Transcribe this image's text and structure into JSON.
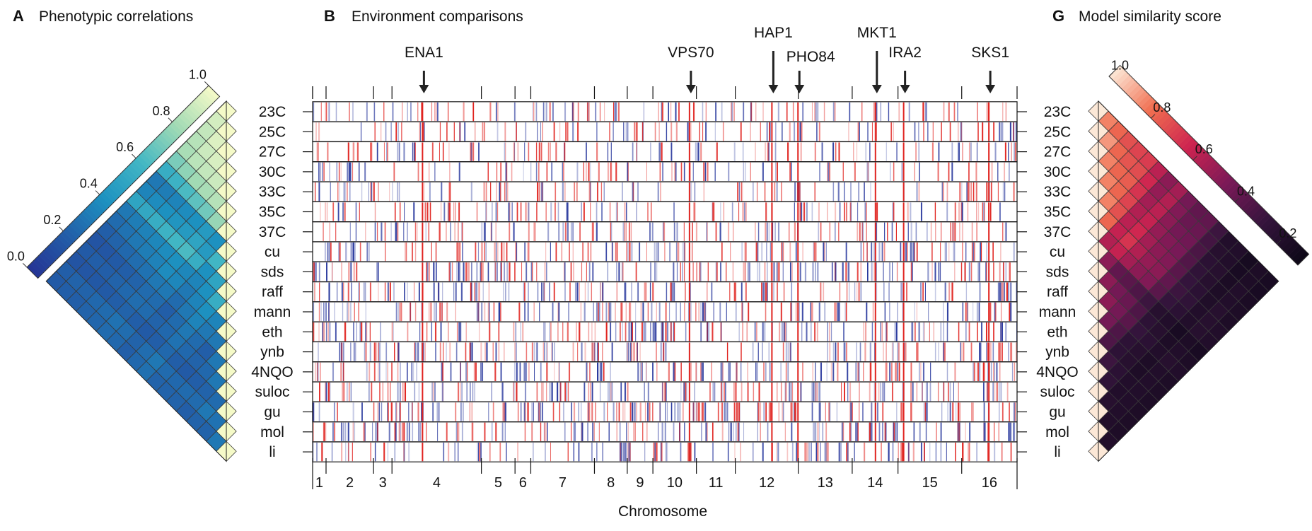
{
  "panel_a": {
    "letter": "A",
    "title": "Phenotypic correlations"
  },
  "panel_b": {
    "letter": "B",
    "title": "Environment comparisons",
    "xlabel": "Chromosome"
  },
  "panel_g": {
    "letter": "G",
    "title": "Model similarity score"
  },
  "environments": [
    "23C",
    "25C",
    "27C",
    "30C",
    "33C",
    "35C",
    "37C",
    "cu",
    "sds",
    "raff",
    "mann",
    "eth",
    "ynb",
    "4NQO",
    "suloc",
    "gu",
    "mol",
    "li"
  ],
  "chromosomes": [
    "1",
    "2",
    "3",
    "4",
    "5",
    "6",
    "7",
    "8",
    "9",
    "10",
    "11",
    "12",
    "13",
    "14",
    "15",
    "16"
  ],
  "genes": [
    "ENA1",
    "VPS70",
    "HAP1",
    "PHO84",
    "MKT1",
    "IRA2",
    "SKS1"
  ],
  "colors": {
    "positive": "#e0231f",
    "negative": "#2b3a9e",
    "arrow": "#222222",
    "frame": "#111111"
  },
  "chart_data": [
    {
      "type": "heatmap",
      "title": "Phenotypic correlations",
      "colormap": "YlGnBu",
      "colorbar_ticks": [
        "0.0",
        "0.2",
        "0.4",
        "0.6",
        "0.8",
        "1.0"
      ],
      "colorbar_range": [
        0,
        1
      ],
      "layout": "lower-triangle rotated 45 degrees, rows aligned with environments",
      "values": [
        [
          1.0
        ],
        [
          0.92,
          1.0
        ],
        [
          0.88,
          0.94,
          1.0
        ],
        [
          0.85,
          0.9,
          0.93,
          1.0
        ],
        [
          0.82,
          0.86,
          0.88,
          0.9,
          1.0
        ],
        [
          0.72,
          0.76,
          0.8,
          0.82,
          0.85,
          1.0
        ],
        [
          0.55,
          0.58,
          0.62,
          0.66,
          0.7,
          0.78,
          1.0
        ],
        [
          0.3,
          0.32,
          0.35,
          0.38,
          0.4,
          0.45,
          0.4,
          1.0
        ],
        [
          0.35,
          0.38,
          0.4,
          0.42,
          0.45,
          0.5,
          0.45,
          0.6,
          1.0
        ],
        [
          0.5,
          0.52,
          0.55,
          0.58,
          0.6,
          0.62,
          0.55,
          0.4,
          0.5,
          1.0
        ],
        [
          0.3,
          0.32,
          0.34,
          0.36,
          0.38,
          0.4,
          0.36,
          0.35,
          0.4,
          0.55,
          1.0
        ],
        [
          0.25,
          0.28,
          0.3,
          0.32,
          0.34,
          0.38,
          0.36,
          0.3,
          0.35,
          0.4,
          0.35,
          1.0
        ],
        [
          0.2,
          0.22,
          0.24,
          0.26,
          0.28,
          0.3,
          0.3,
          0.25,
          0.3,
          0.35,
          0.3,
          0.3,
          1.0
        ],
        [
          0.15,
          0.16,
          0.18,
          0.2,
          0.22,
          0.25,
          0.25,
          0.2,
          0.25,
          0.3,
          0.25,
          0.2,
          0.3,
          1.0
        ],
        [
          0.18,
          0.2,
          0.2,
          0.22,
          0.24,
          0.26,
          0.25,
          0.22,
          0.24,
          0.28,
          0.24,
          0.22,
          0.24,
          0.3,
          1.0
        ],
        [
          0.15,
          0.16,
          0.17,
          0.18,
          0.2,
          0.22,
          0.2,
          0.18,
          0.2,
          0.24,
          0.2,
          0.18,
          0.2,
          0.22,
          0.25,
          1.0
        ],
        [
          0.2,
          0.22,
          0.22,
          0.24,
          0.25,
          0.28,
          0.26,
          0.22,
          0.26,
          0.3,
          0.25,
          0.24,
          0.25,
          0.25,
          0.3,
          0.28,
          1.0
        ],
        [
          0.18,
          0.2,
          0.2,
          0.22,
          0.23,
          0.25,
          0.24,
          0.2,
          0.24,
          0.27,
          0.22,
          0.22,
          0.22,
          0.2,
          0.22,
          0.22,
          0.3,
          1.0
        ]
      ]
    },
    {
      "type": "heatmap",
      "title": "Model similarity score",
      "colormap": "rocket",
      "colorbar_ticks": [
        "0.2",
        "0.4",
        "0.6",
        "0.8",
        "1.0"
      ],
      "colorbar_range": [
        0.1,
        1
      ],
      "layout": "lower-triangle rotated 45 degrees, rows aligned with environments",
      "values": [
        [
          1.0
        ],
        [
          0.85,
          1.0
        ],
        [
          0.8,
          0.88,
          1.0
        ],
        [
          0.75,
          0.8,
          0.85,
          1.0
        ],
        [
          0.72,
          0.76,
          0.8,
          0.85,
          1.0
        ],
        [
          0.7,
          0.74,
          0.78,
          0.8,
          0.85,
          1.0
        ],
        [
          0.6,
          0.65,
          0.68,
          0.72,
          0.75,
          0.8,
          1.0
        ],
        [
          0.5,
          0.52,
          0.55,
          0.58,
          0.6,
          0.62,
          0.58,
          1.0
        ],
        [
          0.55,
          0.58,
          0.6,
          0.62,
          0.65,
          0.68,
          0.62,
          0.5,
          1.0
        ],
        [
          0.45,
          0.48,
          0.5,
          0.52,
          0.55,
          0.58,
          0.55,
          0.4,
          0.5,
          1.0
        ],
        [
          0.4,
          0.42,
          0.45,
          0.48,
          0.5,
          0.52,
          0.5,
          0.38,
          0.45,
          0.5,
          1.0
        ],
        [
          0.4,
          0.42,
          0.44,
          0.46,
          0.48,
          0.5,
          0.48,
          0.35,
          0.42,
          0.45,
          0.45,
          1.0
        ],
        [
          0.3,
          0.32,
          0.34,
          0.36,
          0.38,
          0.4,
          0.38,
          0.3,
          0.35,
          0.38,
          0.35,
          0.35,
          1.0
        ],
        [
          0.2,
          0.22,
          0.24,
          0.26,
          0.28,
          0.3,
          0.28,
          0.22,
          0.25,
          0.28,
          0.25,
          0.25,
          0.3,
          1.0
        ],
        [
          0.2,
          0.2,
          0.22,
          0.22,
          0.24,
          0.26,
          0.24,
          0.2,
          0.22,
          0.24,
          0.22,
          0.22,
          0.24,
          0.26,
          1.0
        ],
        [
          0.15,
          0.16,
          0.17,
          0.18,
          0.19,
          0.2,
          0.2,
          0.16,
          0.18,
          0.2,
          0.18,
          0.18,
          0.2,
          0.2,
          0.22,
          1.0
        ],
        [
          0.18,
          0.18,
          0.2,
          0.2,
          0.22,
          0.22,
          0.22,
          0.18,
          0.2,
          0.22,
          0.2,
          0.2,
          0.2,
          0.2,
          0.2,
          0.2,
          1.0
        ],
        [
          0.16,
          0.16,
          0.17,
          0.18,
          0.18,
          0.2,
          0.2,
          0.16,
          0.18,
          0.2,
          0.18,
          0.18,
          0.18,
          0.18,
          0.18,
          0.18,
          0.2,
          1.0
        ]
      ]
    },
    {
      "type": "heatmap",
      "title": "Environment comparisons",
      "xlabel": "Chromosome",
      "encoding": "genome-wide per-environment marks; red = one direction, blue = other",
      "chromosome_relative_lengths": [
        230,
        813,
        316,
        1531,
        576,
        270,
        1090,
        562,
        439,
        745,
        666,
        1078,
        924,
        784,
        1091,
        948
      ],
      "highlighted_gene_positions_fraction": {
        "ENA1": 0.158,
        "VPS70": 0.537,
        "HAP1": 0.654,
        "PHO84": 0.691,
        "MKT1": 0.801,
        "IRA2": 0.841,
        "SKS1": 0.962
      },
      "highlighted_gene_rows": "all environments",
      "mark_density_by_environment": [
        0.42,
        0.4,
        0.4,
        0.38,
        0.42,
        0.45,
        0.46,
        0.55,
        0.6,
        0.55,
        0.58,
        0.6,
        0.58,
        0.6,
        0.6,
        0.68,
        0.6,
        0.5
      ]
    }
  ]
}
